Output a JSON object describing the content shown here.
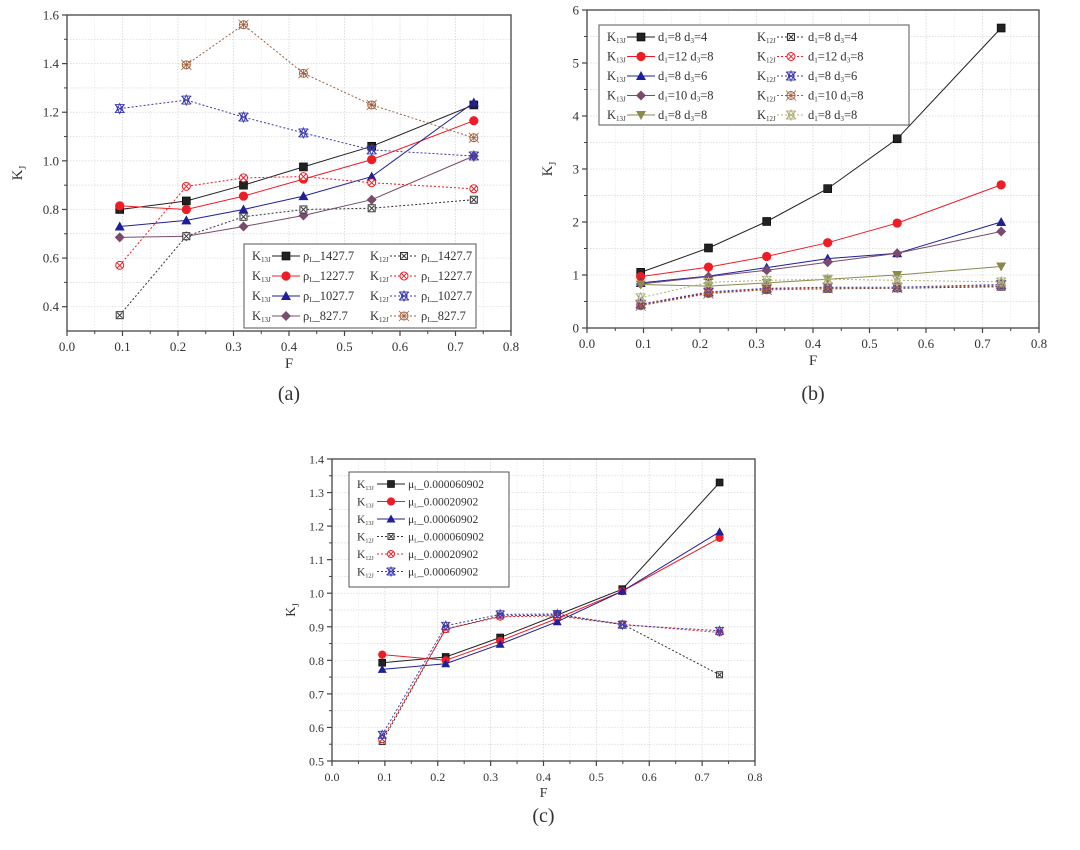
{
  "chart_data": [
    {
      "id": "a",
      "type": "line",
      "caption": "(a)",
      "xlabel": "F",
      "ylabel": "K",
      "ylabel_sub": "J",
      "xlim": [
        0.0,
        0.8
      ],
      "ylim": [
        0.3,
        1.6
      ],
      "xticks": [
        "0.0",
        "0.1",
        "0.2",
        "0.3",
        "0.4",
        "0.5",
        "0.6",
        "0.7",
        "0.8"
      ],
      "xtick_values": [
        0,
        0.1,
        0.2,
        0.3,
        0.4,
        0.5,
        0.6,
        0.7,
        0.8
      ],
      "yticks": [
        "0.4",
        "0.6",
        "0.8",
        "1.0",
        "1.2",
        "1.4",
        "1.6"
      ],
      "ytick_values": [
        0.4,
        0.6,
        0.8,
        1.0,
        1.2,
        1.4,
        1.6
      ],
      "grid": true,
      "legend_position": "bottom-right",
      "legend_columns": 2,
      "x": [
        0.095,
        0.215,
        0.318,
        0.426,
        0.549,
        0.733
      ],
      "series": [
        {
          "prefix": "K",
          "prefix_sub": "13J",
          "label": "ρ",
          "label_sub": "L",
          "suffix": "_1427.7",
          "color": "#222222",
          "marker": "square",
          "dash": false,
          "values": [
            0.8,
            0.835,
            0.9,
            0.975,
            1.06,
            1.23
          ]
        },
        {
          "prefix": "K",
          "prefix_sub": "13J",
          "label": "ρ",
          "label_sub": "L",
          "suffix": "_1227.7",
          "color": "#ee1c25",
          "marker": "circle",
          "dash": false,
          "values": [
            0.815,
            0.8,
            0.855,
            0.925,
            1.005,
            1.165
          ]
        },
        {
          "prefix": "K",
          "prefix_sub": "13J",
          "label": "ρ",
          "label_sub": "L",
          "suffix": "_1027.7",
          "color": "#1f1f99",
          "marker": "triangle",
          "dash": false,
          "values": [
            0.73,
            0.755,
            0.8,
            0.855,
            0.935,
            1.24
          ]
        },
        {
          "prefix": "K",
          "prefix_sub": "13J",
          "label": "ρ",
          "label_sub": "L",
          "suffix": "_827.7",
          "color": "#7a4b6e",
          "marker": "diamond",
          "dash": false,
          "values": [
            0.685,
            0.69,
            0.73,
            0.775,
            0.84,
            1.02
          ]
        },
        {
          "prefix": "K",
          "prefix_sub": "12J",
          "label": "ρ",
          "label_sub": "L",
          "suffix": "_1427.7",
          "color": "#333333",
          "marker": "square-x",
          "dash": true,
          "values": [
            0.365,
            0.69,
            0.77,
            0.8,
            0.805,
            0.84
          ]
        },
        {
          "prefix": "K",
          "prefix_sub": "12J",
          "label": "ρ",
          "label_sub": "L",
          "suffix": "_1227.7",
          "color": "#ee1c25",
          "marker": "circle-x",
          "dash": true,
          "values": [
            0.57,
            0.895,
            0.93,
            0.935,
            0.91,
            0.885
          ]
        },
        {
          "prefix": "K",
          "prefix_sub": "12J",
          "label": "ρ",
          "label_sub": "L",
          "suffix": "_1027.7",
          "color": "#3a3ab0",
          "marker": "star-x",
          "dash": true,
          "values": [
            1.215,
            1.25,
            1.18,
            1.115,
            1.045,
            1.02
          ]
        },
        {
          "prefix": "K",
          "prefix_sub": "12J",
          "label": "ρ",
          "label_sub": "L",
          "suffix": "_827.7",
          "color": "#a0603e",
          "marker": "cross-circle",
          "dash": true,
          "values": [
            null,
            1.395,
            1.56,
            1.36,
            1.23,
            1.095
          ]
        }
      ]
    },
    {
      "id": "b",
      "type": "line",
      "caption": "(b)",
      "xlabel": "F",
      "ylabel": "K",
      "ylabel_sub": "J",
      "xlim": [
        0.0,
        0.8
      ],
      "ylim": [
        0,
        6
      ],
      "xticks": [
        "0.0",
        "0.1",
        "0.2",
        "0.3",
        "0.4",
        "0.5",
        "0.6",
        "0.7",
        "0.8"
      ],
      "xtick_values": [
        0,
        0.1,
        0.2,
        0.3,
        0.4,
        0.5,
        0.6,
        0.7,
        0.8
      ],
      "yticks": [
        "0",
        "1",
        "2",
        "3",
        "4",
        "5",
        "6"
      ],
      "ytick_values": [
        0,
        1,
        2,
        3,
        4,
        5,
        6
      ],
      "grid": true,
      "legend_position": "top-left",
      "legend_columns": 2,
      "x": [
        0.095,
        0.215,
        0.318,
        0.426,
        0.549,
        0.733
      ],
      "series": [
        {
          "prefix": "K",
          "prefix_sub": "13J",
          "label": "d",
          "label_sub": "1",
          "suffix": "=8 d",
          "suffix_sub": "3",
          "suffix2": "=4",
          "color": "#222222",
          "marker": "square",
          "dash": false,
          "values": [
            1.05,
            1.51,
            2.01,
            2.63,
            3.57,
            5.66
          ]
        },
        {
          "prefix": "K",
          "prefix_sub": "13J",
          "label": "d",
          "label_sub": "1",
          "suffix": "=12 d",
          "suffix_sub": "3",
          "suffix2": "=8",
          "color": "#ee1c25",
          "marker": "circle",
          "dash": false,
          "values": [
            0.97,
            1.15,
            1.35,
            1.61,
            1.98,
            2.7
          ]
        },
        {
          "prefix": "K",
          "prefix_sub": "13J",
          "label": "d",
          "label_sub": "1",
          "suffix": "=8 d",
          "suffix_sub": "3",
          "suffix2": "=6",
          "color": "#1f1f99",
          "marker": "triangle",
          "dash": false,
          "values": [
            0.85,
            0.98,
            1.14,
            1.31,
            1.41,
            2.0
          ]
        },
        {
          "prefix": "K",
          "prefix_sub": "13J",
          "label": "d",
          "label_sub": "1",
          "suffix": "=10 d",
          "suffix_sub": "3",
          "suffix2": "=8",
          "color": "#7a4b6e",
          "marker": "diamond",
          "dash": false,
          "values": [
            0.83,
            0.97,
            1.09,
            1.24,
            1.41,
            1.82
          ]
        },
        {
          "prefix": "K",
          "prefix_sub": "13J",
          "label": "d",
          "label_sub": "1",
          "suffix": "=8 d",
          "suffix_sub": "3",
          "suffix2": "=8",
          "color": "#8a8a4a",
          "marker": "triangle-down",
          "dash": false,
          "values": [
            0.82,
            0.79,
            0.85,
            0.92,
            1.0,
            1.16
          ]
        },
        {
          "prefix": "K",
          "prefix_sub": "12J",
          "label": "d",
          "label_sub": "1",
          "suffix": "=8 d",
          "suffix_sub": "3",
          "suffix2": "=4",
          "color": "#333333",
          "marker": "square-x",
          "dash": true,
          "values": [
            0.43,
            0.66,
            0.72,
            0.74,
            0.75,
            0.78
          ]
        },
        {
          "prefix": "K",
          "prefix_sub": "12J",
          "label": "d",
          "label_sub": "1",
          "suffix": "=12 d",
          "suffix_sub": "3",
          "suffix2": "=8",
          "color": "#ee1c25",
          "marker": "circle-x",
          "dash": true,
          "values": [
            0.44,
            0.67,
            0.74,
            0.76,
            0.76,
            0.8
          ]
        },
        {
          "prefix": "K",
          "prefix_sub": "12J",
          "label": "d",
          "label_sub": "1",
          "suffix": "=8 d",
          "suffix_sub": "3",
          "suffix2": "=6",
          "color": "#3a3ab0",
          "marker": "star-x",
          "dash": true,
          "values": [
            0.45,
            0.68,
            0.75,
            0.77,
            0.77,
            0.82
          ]
        },
        {
          "prefix": "K",
          "prefix_sub": "12J",
          "label": "d",
          "label_sub": "1",
          "suffix": "=10 d",
          "suffix_sub": "3",
          "suffix2": "=8",
          "color": "#a0603e",
          "marker": "cross-circle",
          "dash": true,
          "values": [
            0.42,
            0.65,
            0.72,
            0.75,
            0.76,
            0.8
          ]
        },
        {
          "prefix": "K",
          "prefix_sub": "12J",
          "label": "d",
          "label_sub": "1",
          "suffix": "=8 d",
          "suffix_sub": "3",
          "suffix2": "=8",
          "color": "#b0b07a",
          "marker": "star-x",
          "dash": true,
          "values": [
            0.57,
            0.86,
            0.9,
            0.92,
            0.9,
            0.87
          ]
        }
      ]
    },
    {
      "id": "c",
      "type": "line",
      "caption": "(c)",
      "xlabel": "F",
      "ylabel": "K",
      "ylabel_sub": "J",
      "xlim": [
        0.0,
        0.8
      ],
      "ylim": [
        0.5,
        1.4
      ],
      "xticks": [
        "0.0",
        "0.1",
        "0.2",
        "0.3",
        "0.4",
        "0.5",
        "0.6",
        "0.7",
        "0.8"
      ],
      "xtick_values": [
        0,
        0.1,
        0.2,
        0.3,
        0.4,
        0.5,
        0.6,
        0.7,
        0.8
      ],
      "yticks": [
        "0.5",
        "0.6",
        "0.7",
        "0.8",
        "0.9",
        "1.0",
        "1.1",
        "1.2",
        "1.3",
        "1.4"
      ],
      "ytick_values": [
        0.5,
        0.6,
        0.7,
        0.8,
        0.9,
        1.0,
        1.1,
        1.2,
        1.3,
        1.4
      ],
      "grid": true,
      "legend_position": "top-left",
      "legend_columns": 1,
      "x": [
        0.095,
        0.215,
        0.318,
        0.426,
        0.549,
        0.733
      ],
      "series": [
        {
          "prefix": "K",
          "prefix_sub": "13J",
          "label": "μ",
          "label_sub": "L",
          "suffix": "_0.000060902",
          "color": "#222222",
          "marker": "square",
          "dash": false,
          "values": [
            0.793,
            0.81,
            0.868,
            0.935,
            1.012,
            1.33
          ]
        },
        {
          "prefix": "K",
          "prefix_sub": "13J",
          "label": "μ",
          "label_sub": "L",
          "suffix": "_0.00020902",
          "color": "#ee1c25",
          "marker": "circle",
          "dash": false,
          "values": [
            0.817,
            0.8,
            0.858,
            0.925,
            1.006,
            1.165
          ]
        },
        {
          "prefix": "K",
          "prefix_sub": "13J",
          "label": "μ",
          "label_sub": "L",
          "suffix": "_0.00060902",
          "color": "#1f1f99",
          "marker": "triangle",
          "dash": false,
          "values": [
            0.773,
            0.79,
            0.848,
            0.915,
            1.006,
            1.183
          ]
        },
        {
          "prefix": "K",
          "prefix_sub": "12J",
          "label": "μ",
          "label_sub": "L",
          "suffix": "_0.000060902",
          "color": "#333333",
          "marker": "square-x",
          "dash": true,
          "values": [
            0.558,
            0.893,
            0.932,
            0.935,
            0.908,
            0.757
          ]
        },
        {
          "prefix": "K",
          "prefix_sub": "12J",
          "label": "μ",
          "label_sub": "L",
          "suffix": "_0.00020902",
          "color": "#ee1c25",
          "marker": "circle-x",
          "dash": true,
          "values": [
            0.565,
            0.893,
            0.93,
            0.932,
            0.907,
            0.883
          ]
        },
        {
          "prefix": "K",
          "prefix_sub": "12J",
          "label": "μ",
          "label_sub": "L",
          "suffix": "_0.00060902",
          "color": "#3a3ab0",
          "marker": "star-x",
          "dash": true,
          "values": [
            0.578,
            0.903,
            0.937,
            0.938,
            0.906,
            0.888
          ]
        }
      ]
    }
  ]
}
